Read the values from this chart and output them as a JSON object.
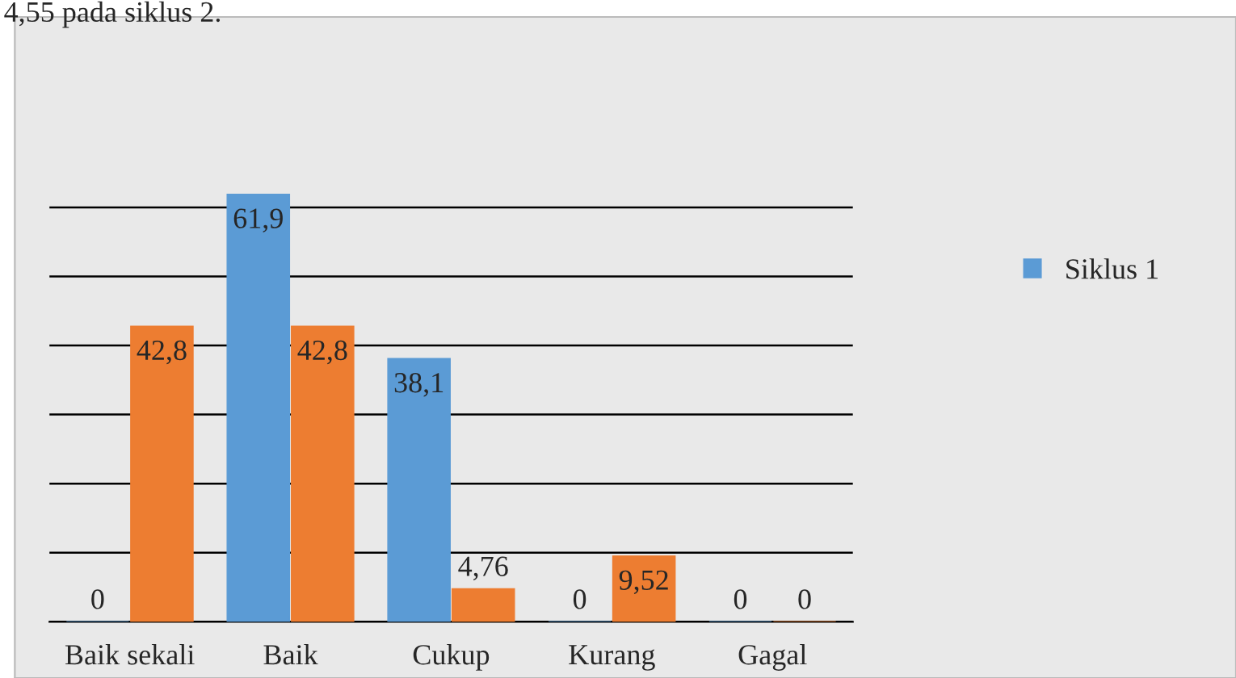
{
  "chart_data": {
    "type": "bar",
    "categories": [
      "Baik sekali",
      "Baik",
      "Cukup",
      "Kurang",
      "Gagal"
    ],
    "series": [
      {
        "name": "Siklus 1",
        "color": "#5b9bd5",
        "values": [
          0,
          61.9,
          38.1,
          0,
          0
        ],
        "value_labels": [
          "0",
          "61,9",
          "38,1",
          "0",
          "0"
        ]
      },
      {
        "color": "#ed7d31",
        "values": [
          42.8,
          42.8,
          4.76,
          9.52,
          0
        ],
        "value_labels": [
          "42,8",
          "42,8",
          "4,76",
          "9,52",
          "0"
        ]
      }
    ],
    "tick_labels": "x",
    "grid": "y",
    "legend": "right",
    "annotations": [
      "4,55 pada siklus 2."
    ]
  }
}
